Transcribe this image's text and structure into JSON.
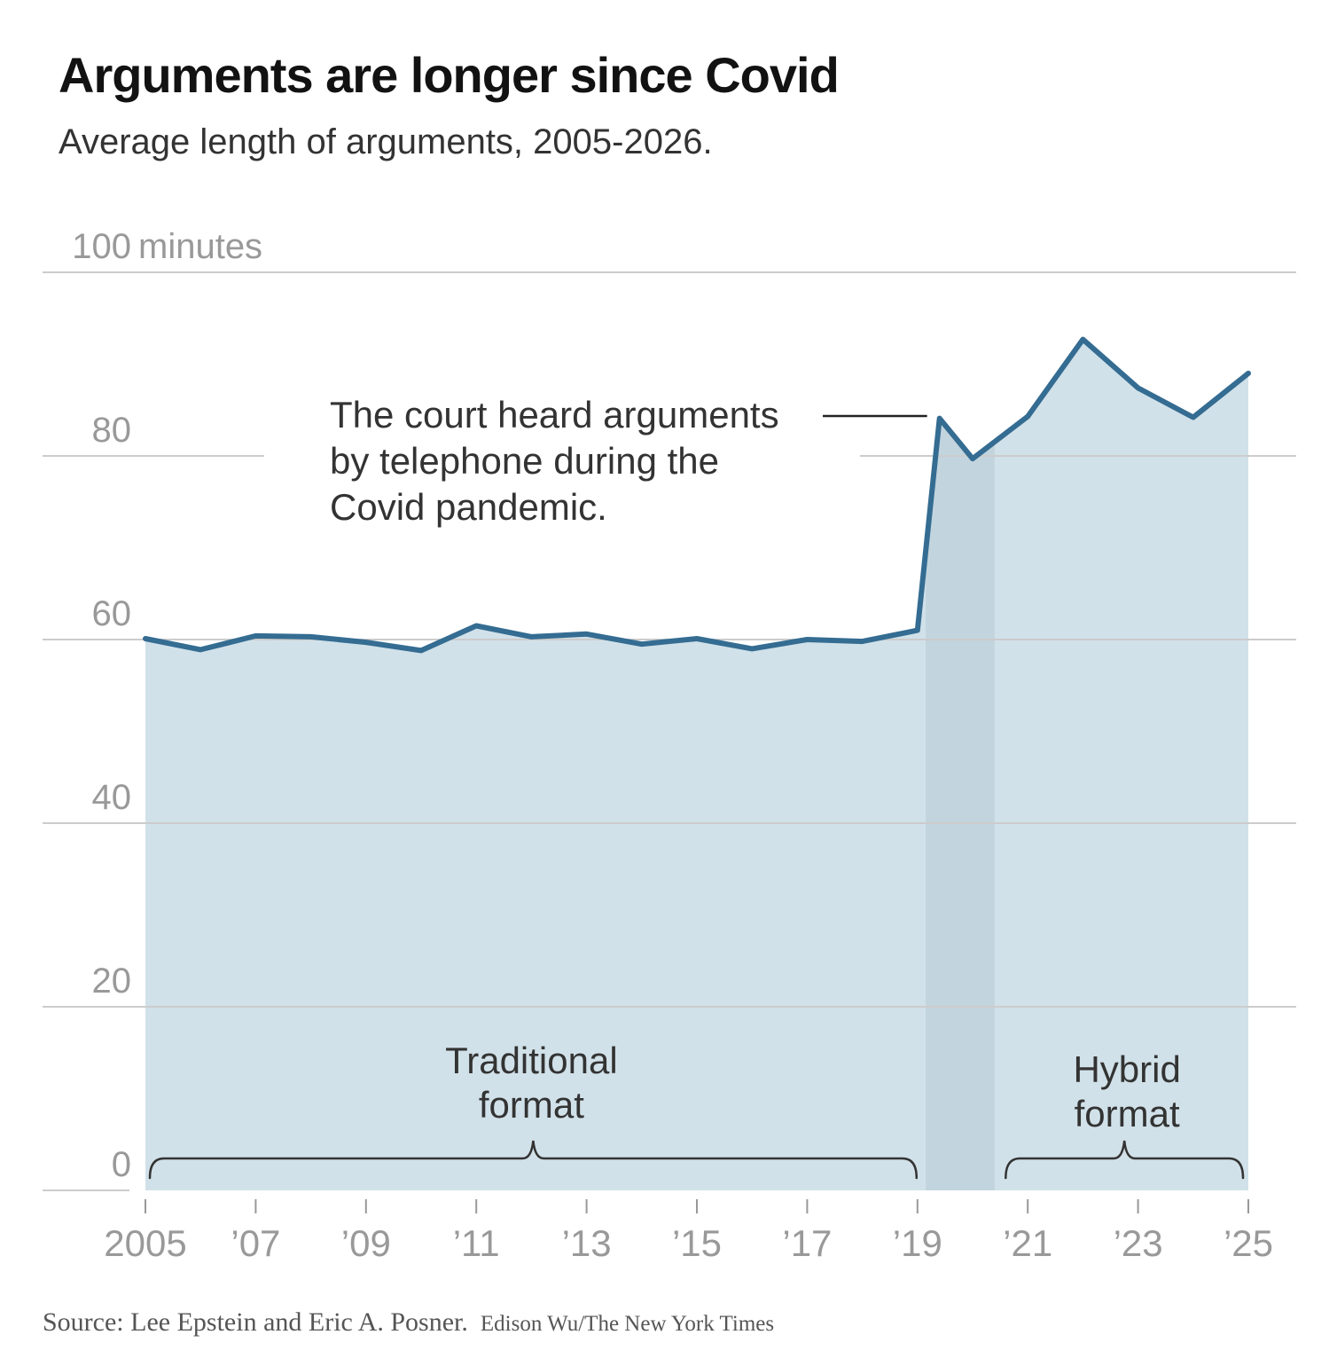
{
  "title": "Arguments are longer since Covid",
  "subtitle": "Average length of arguments, 2005-2026.",
  "source": "Source: Lee Epstein and Eric A. Posner.",
  "credit": "Edison Wu/The New York Times",
  "colors": {
    "line": "#346c92",
    "area": "#d1e1e9",
    "covid_band": "#c2d4dd",
    "grid": "#cccccc",
    "axis_text": "#999999",
    "annotation_text": "#333333"
  },
  "chart_data": {
    "type": "area",
    "x": [
      2005,
      2006,
      2007,
      2008,
      2009,
      2010,
      2011,
      2012,
      2013,
      2014,
      2015,
      2016,
      2017,
      2018,
      2019,
      2019.4,
      2020,
      2021,
      2022,
      2023,
      2024,
      2025
    ],
    "values": [
      60.1,
      58.9,
      60.4,
      60.3,
      59.7,
      58.8,
      61.5,
      60.3,
      60.6,
      59.5,
      60.1,
      59.0,
      60.0,
      59.8,
      61.0,
      84.1,
      79.7,
      84.3,
      92.7,
      87.4,
      84.2,
      89.0
    ],
    "ylim": [
      0,
      100
    ],
    "xlim": [
      2005,
      2025
    ],
    "y_ticks": [
      {
        "value": 0,
        "label": "0"
      },
      {
        "value": 20,
        "label": "20"
      },
      {
        "value": 40,
        "label": "40"
      },
      {
        "value": 60,
        "label": "60"
      },
      {
        "value": 80,
        "label": "80"
      },
      {
        "value": 100,
        "label": "100"
      }
    ],
    "y_unit": "minutes",
    "x_ticks": [
      {
        "value": 2005,
        "label": "2005"
      },
      {
        "value": 2007,
        "label": "’07"
      },
      {
        "value": 2009,
        "label": "’09"
      },
      {
        "value": 2011,
        "label": "’11"
      },
      {
        "value": 2013,
        "label": "’13"
      },
      {
        "value": 2015,
        "label": "’15"
      },
      {
        "value": 2017,
        "label": "’17"
      },
      {
        "value": 2019,
        "label": "’19"
      },
      {
        "value": 2021,
        "label": "’21"
      },
      {
        "value": 2023,
        "label": "’23"
      },
      {
        "value": 2025,
        "label": "’25"
      }
    ],
    "covid_band": [
      2019.15,
      2020.4
    ],
    "grid": true,
    "annotations": {
      "covid": {
        "lines": [
          "The court heard arguments",
          "by telephone during the",
          "Covid pandemic."
        ],
        "x": 2019.4,
        "y": 84.1
      },
      "traditional": {
        "lines": [
          "Traditional",
          "format"
        ],
        "range": [
          2005,
          2019
        ]
      },
      "hybrid": {
        "lines": [
          "Hybrid",
          "format"
        ],
        "range": [
          2020.6,
          2025
        ]
      }
    }
  }
}
